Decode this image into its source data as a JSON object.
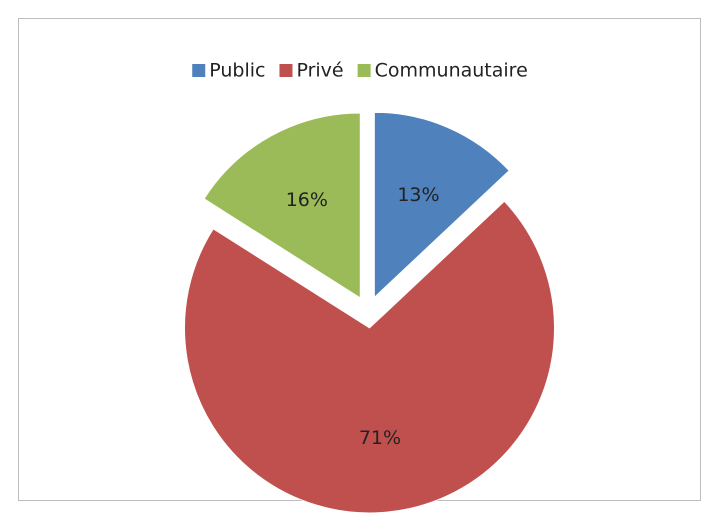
{
  "chart_data": {
    "type": "pie",
    "categories": [
      "Public",
      "Privé",
      "Communautaire"
    ],
    "values": [
      13,
      71,
      16
    ],
    "value_labels": [
      "13%",
      "71%",
      "16%"
    ],
    "colors": [
      "#4f81bd",
      "#c0504d",
      "#9bbb59"
    ],
    "legend": "top"
  }
}
